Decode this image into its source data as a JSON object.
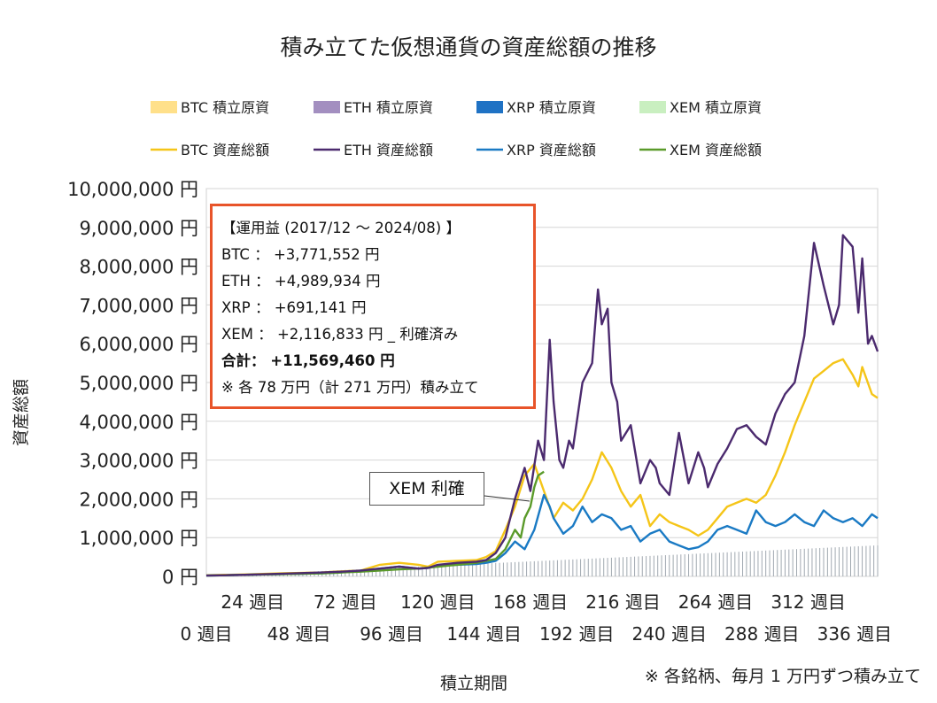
{
  "chart_data": {
    "type": "line",
    "title": "積み立てた仮想通貨の資産総額の推移",
    "ylabel": "資産総額",
    "xlabel": "積立期間",
    "ylim": [
      0,
      10000000
    ],
    "y_ticks": [
      "0 円",
      "1,000,000 円",
      "2,000,000 円",
      "3,000,000 円",
      "4,000,000 円",
      "5,000,000 円",
      "6,000,000 円",
      "7,000,000 円",
      "8,000,000 円",
      "9,000,000 円",
      "10,000,000 円"
    ],
    "x_ticks_upper": [
      "24 週目",
      "72 週目",
      "120 週目",
      "168 週目",
      "216 週目",
      "264 週目",
      "312 週目"
    ],
    "x_ticks_lower": [
      "0 週目",
      "48 週目",
      "96 週目",
      "144 週目",
      "192 週目",
      "240 週目",
      "288 週目",
      "336 週目"
    ],
    "x_range": [
      0,
      348
    ],
    "grid": true,
    "legend_position": "top",
    "legend": [
      {
        "label": "BTC  積立原資",
        "kind": "area",
        "color": "#ffe08a"
      },
      {
        "label": "ETH  積立原資",
        "kind": "area",
        "color": "#a38fc0"
      },
      {
        "label": "XRP  積立原資",
        "kind": "area",
        "color": "#1f72c4"
      },
      {
        "label": "XEM  積立原資",
        "kind": "area",
        "color": "#c9efc0"
      },
      {
        "label": "BTC  資産総額",
        "kind": "line",
        "color": "#f5c518"
      },
      {
        "label": "ETH  資産総額",
        "kind": "line",
        "color": "#4b2a6e"
      },
      {
        "label": "XRP  資産総額",
        "kind": "line",
        "color": "#1a7ac4"
      },
      {
        "label": "XEM  資産総額",
        "kind": "line",
        "color": "#5a9a2a"
      }
    ],
    "series": [
      {
        "name": "BTC  資産総額",
        "color": "#f5c518",
        "x": [
          0,
          20,
          40,
          60,
          70,
          80,
          90,
          100,
          110,
          115,
          120,
          130,
          140,
          145,
          150,
          155,
          160,
          165,
          170,
          175,
          180,
          185,
          190,
          195,
          200,
          205,
          210,
          215,
          220,
          225,
          230,
          235,
          240,
          245,
          250,
          255,
          260,
          265,
          270,
          275,
          280,
          285,
          290,
          295,
          300,
          305,
          310,
          315,
          320,
          325,
          330,
          335,
          338,
          340,
          345,
          348
        ],
        "y": [
          30000,
          50000,
          80000,
          100000,
          130000,
          150000,
          300000,
          350000,
          300000,
          250000,
          380000,
          400000,
          420000,
          500000,
          650000,
          1200000,
          1800000,
          2600000,
          2900000,
          2200000,
          1500000,
          1900000,
          1700000,
          2000000,
          2500000,
          3200000,
          2800000,
          2200000,
          1800000,
          2100000,
          1300000,
          1600000,
          1400000,
          1300000,
          1200000,
          1050000,
          1200000,
          1500000,
          1800000,
          1900000,
          2000000,
          1900000,
          2100000,
          2600000,
          3200000,
          3900000,
          4500000,
          5100000,
          5300000,
          5500000,
          5600000,
          5200000,
          4900000,
          5400000,
          4700000,
          4600000
        ]
      },
      {
        "name": "ETH  資産総額",
        "color": "#4b2a6e",
        "x": [
          0,
          20,
          40,
          60,
          70,
          80,
          90,
          100,
          110,
          115,
          120,
          130,
          140,
          145,
          150,
          155,
          160,
          165,
          168,
          172,
          175,
          178,
          180,
          183,
          185,
          188,
          190,
          195,
          200,
          203,
          205,
          208,
          210,
          213,
          215,
          220,
          225,
          230,
          233,
          235,
          240,
          245,
          250,
          255,
          258,
          260,
          265,
          270,
          275,
          280,
          285,
          290,
          295,
          300,
          305,
          310,
          315,
          320,
          325,
          328,
          330,
          335,
          338,
          340,
          343,
          345,
          348
        ],
        "y": [
          20000,
          40000,
          70000,
          100000,
          120000,
          150000,
          200000,
          250000,
          200000,
          220000,
          300000,
          350000,
          380000,
          420000,
          600000,
          1000000,
          2000000,
          2800000,
          2200000,
          3500000,
          3000000,
          6100000,
          4500000,
          3000000,
          2800000,
          3500000,
          3300000,
          5000000,
          5500000,
          7400000,
          6500000,
          6900000,
          5000000,
          4500000,
          3500000,
          3900000,
          2400000,
          3000000,
          2800000,
          2400000,
          2100000,
          3700000,
          2400000,
          3200000,
          2800000,
          2300000,
          2900000,
          3300000,
          3800000,
          3900000,
          3600000,
          3400000,
          4200000,
          4700000,
          5000000,
          6200000,
          8600000,
          7500000,
          6500000,
          7000000,
          8800000,
          8500000,
          6800000,
          8200000,
          6000000,
          6200000,
          5800000
        ]
      },
      {
        "name": "XRP  資産総額",
        "color": "#1a7ac4",
        "x": [
          0,
          20,
          40,
          60,
          70,
          80,
          90,
          100,
          110,
          115,
          120,
          130,
          140,
          145,
          150,
          155,
          160,
          165,
          170,
          175,
          178,
          180,
          185,
          190,
          195,
          200,
          205,
          210,
          215,
          220,
          225,
          230,
          235,
          240,
          245,
          250,
          255,
          260,
          265,
          270,
          275,
          280,
          285,
          290,
          295,
          300,
          305,
          310,
          315,
          320,
          325,
          330,
          335,
          340,
          345,
          348
        ],
        "y": [
          20000,
          40000,
          60000,
          80000,
          100000,
          150000,
          200000,
          250000,
          200000,
          220000,
          280000,
          300000,
          320000,
          350000,
          400000,
          600000,
          900000,
          700000,
          1200000,
          2100000,
          1800000,
          1500000,
          1100000,
          1300000,
          1800000,
          1400000,
          1600000,
          1500000,
          1200000,
          1300000,
          900000,
          1100000,
          1200000,
          900000,
          800000,
          700000,
          750000,
          900000,
          1200000,
          1300000,
          1200000,
          1100000,
          1700000,
          1400000,
          1300000,
          1400000,
          1600000,
          1400000,
          1300000,
          1700000,
          1500000,
          1400000,
          1500000,
          1300000,
          1600000,
          1500000
        ]
      },
      {
        "name": "XEM  資産総額",
        "color": "#5a9a2a",
        "x": [
          0,
          20,
          40,
          60,
          70,
          80,
          90,
          100,
          110,
          120,
          130,
          140,
          145,
          150,
          155,
          160,
          163,
          165,
          168,
          170,
          172,
          175
        ],
        "y": [
          20000,
          40000,
          60000,
          80000,
          100000,
          120000,
          150000,
          180000,
          200000,
          250000,
          300000,
          350000,
          400000,
          450000,
          700000,
          1200000,
          1000000,
          1500000,
          1800000,
          2300000,
          2600000,
          2700000
        ]
      },
      {
        "name": "BTC  積立原資",
        "color": "#a0a8b0",
        "x": [
          0,
          348
        ],
        "y": [
          0,
          800000
        ]
      }
    ]
  },
  "annotation": {
    "lines": [
      "【運用益 (2017/12 ～ 2024/08) 】",
      "BTC ： +3,771,552 円",
      "ETH ： +4,989,934 円",
      "XRP ： +691,141 円",
      "XEM ： +2,116,833 円 _ 利確済み",
      "合計： +11,569,460 円",
      "※ 各 78 万円（計 271 万円）積み立て"
    ],
    "callout": "XEM 利確"
  },
  "footnote": "※ 各銘柄、毎月 1 万円ずつ積み立て"
}
